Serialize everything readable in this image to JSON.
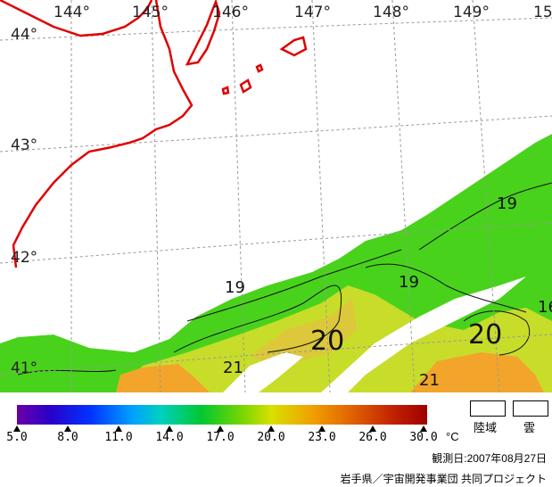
{
  "map": {
    "longitude_labels": [
      "144°",
      "145°",
      "146°",
      "147°",
      "148°",
      "149°",
      "15"
    ],
    "latitude_labels": [
      "44°",
      "43°",
      "42°",
      "41°"
    ],
    "isotherm_labels": [
      "19",
      "19",
      "19",
      "20",
      "20",
      "21",
      "21",
      "16"
    ],
    "colors": {
      "coastline": "#e00000",
      "grid": "#999999",
      "sst_green": "#49d21c",
      "sst_yellow": "#c8dc2a",
      "sst_orange": "#f2a52a"
    }
  },
  "legend": {
    "ticks": [
      "5.0",
      "8.0",
      "11.0",
      "14.0",
      "17.0",
      "20.0",
      "23.0",
      "26.0",
      "30.0"
    ],
    "unit": "°C",
    "land_label": "陸域",
    "cloud_label": "雲"
  },
  "footer": {
    "observation_date": "観測日:2007年08月27日",
    "credit": "岩手県／宇宙開発事業団 共同プロジェクト"
  }
}
